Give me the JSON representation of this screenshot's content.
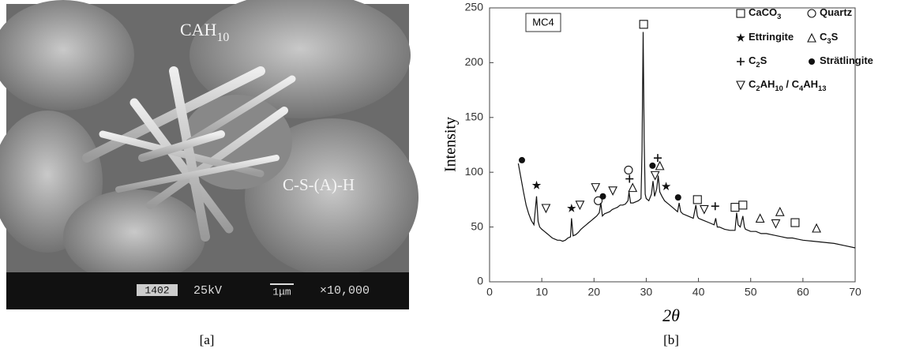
{
  "panel_a": {
    "labels": [
      "CAH10",
      "C-S-(A)-H"
    ],
    "info_bar": [
      "1402",
      "25kV",
      "1μm",
      "×10,000"
    ],
    "caption": "[a]"
  },
  "caption_b": "[b]",
  "chart_data": {
    "type": "line",
    "xlabel": "2θ",
    "ylabel": "Intensity",
    "annotation": "MC4",
    "xlim": [
      0,
      70
    ],
    "ylim": [
      0,
      250
    ],
    "xticks": [
      0,
      10,
      20,
      30,
      40,
      50,
      60,
      70
    ],
    "yticks": [
      0,
      50,
      100,
      150,
      200,
      250
    ],
    "color": "#111111",
    "x": [
      5.5,
      6,
      6.5,
      7,
      7.5,
      8,
      8.5,
      9,
      9.3,
      9.6,
      10,
      10.5,
      11,
      11.5,
      12,
      12.5,
      13,
      13.5,
      14,
      14.5,
      15,
      15.5,
      15.7,
      16,
      16.5,
      17,
      17.5,
      18,
      18.5,
      19,
      19.5,
      20,
      20.5,
      21,
      21.3,
      21.6,
      22,
      22.5,
      23,
      23.5,
      24,
      24.5,
      25,
      25.5,
      26,
      26.5,
      26.7,
      27,
      27.5,
      28,
      28.5,
      29,
      29.2,
      29.4,
      29.6,
      29.8,
      30,
      30.5,
      31,
      31.3,
      31.6,
      32,
      32.3,
      32.6,
      33,
      33.5,
      34,
      34.5,
      35,
      35.5,
      36,
      36.3,
      36.6,
      37,
      38,
      39,
      39.5,
      39.8,
      40,
      41,
      42,
      43,
      43.3,
      43.6,
      44,
      45,
      46,
      47,
      47.3,
      47.6,
      48,
      48.5,
      48.8,
      49,
      50,
      51,
      52,
      53,
      54,
      55,
      56,
      57,
      58,
      59,
      60,
      62,
      64,
      66,
      68,
      70
    ],
    "values": [
      108,
      95,
      82,
      70,
      62,
      56,
      52,
      78,
      55,
      50,
      48,
      46,
      44,
      42,
      40,
      39,
      38,
      38,
      37,
      38,
      40,
      41,
      58,
      42,
      43,
      45,
      48,
      50,
      52,
      54,
      56,
      58,
      60,
      63,
      72,
      60,
      62,
      63,
      64,
      66,
      67,
      68,
      70,
      70,
      71,
      74,
      82,
      72,
      72,
      73,
      74,
      76,
      120,
      228,
      130,
      80,
      76,
      74,
      80,
      92,
      78,
      85,
      97,
      82,
      78,
      74,
      72,
      70,
      68,
      66,
      64,
      72,
      64,
      62,
      60,
      58,
      70,
      60,
      58,
      56,
      54,
      52,
      58,
      50,
      50,
      48,
      47,
      47,
      63,
      52,
      50,
      60,
      50,
      48,
      46,
      46,
      44,
      44,
      43,
      42,
      41,
      40,
      40,
      39,
      38,
      37,
      36,
      35,
      33,
      31
    ],
    "series": [
      {
        "name": "CaCO3",
        "marker": "square",
        "x": [
          29.5,
          39.8,
          47,
          48.5,
          58.5
        ],
        "values": [
          235,
          75,
          68,
          70,
          54
        ]
      },
      {
        "name": "Quartz",
        "marker": "circle",
        "x": [
          26.6,
          20.8
        ],
        "values": [
          102,
          74
        ]
      },
      {
        "name": "Ettringite",
        "marker": "star",
        "x": [
          9,
          15.7,
          33.8
        ],
        "values": [
          88,
          67,
          87
        ]
      },
      {
        "name": "C3S",
        "marker": "triangle-up",
        "x": [
          27.4,
          32.6,
          51.8,
          55.6,
          62.6
        ],
        "values": [
          86,
          106,
          58,
          64,
          49
        ]
      },
      {
        "name": "C2S",
        "marker": "plus",
        "x": [
          26.8,
          32.2,
          43.2
        ],
        "values": [
          94,
          113,
          69
        ]
      },
      {
        "name": "Strätlingite",
        "marker": "dot",
        "x": [
          6.2,
          21.7,
          31.2,
          36.1
        ],
        "values": [
          111,
          78,
          106,
          77
        ]
      },
      {
        "name": "C2AH10 / C4AH13",
        "marker": "triangle-down",
        "x": [
          10.8,
          17.3,
          20.3,
          23.6,
          31.7,
          41.1,
          54.8
        ],
        "values": [
          67,
          70,
          86,
          83,
          97,
          66,
          53
        ]
      }
    ]
  }
}
